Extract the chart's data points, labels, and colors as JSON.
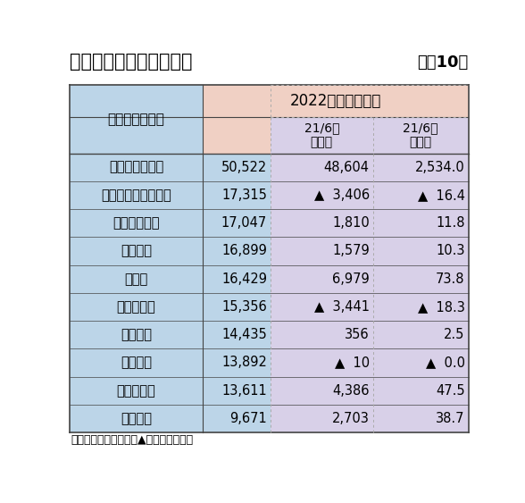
{
  "title_left": "地銀の連結四半期純利益",
  "title_right": "上位10社",
  "period_header": "2022年４〜６月期",
  "bank_header": "銀　行　名　等",
  "col2_header": "21/6比\n増減額",
  "col3_header": "21/6比\n増減率",
  "rows": [
    {
      "name": "プロクレアＨＤ",
      "value": "50,522",
      "change_amt": "48,604",
      "change_rate": "2,534.0",
      "neg_amt": false,
      "neg_rate": false
    },
    {
      "name": "コンコルディアＦＧ",
      "value": "17,315",
      "change_amt": "▲  3,406",
      "change_rate": "▲  16.4",
      "neg_amt": true,
      "neg_rate": true
    },
    {
      "name": "ふくおかＦＧ",
      "value": "17,047",
      "change_amt": "1,810",
      "change_rate": "11.8",
      "neg_amt": false,
      "neg_rate": false
    },
    {
      "name": "千　　葉",
      "value": "16,899",
      "change_amt": "1,579",
      "change_rate": "10.3",
      "neg_amt": false,
      "neg_rate": false
    },
    {
      "name": "伊　予",
      "value": "16,429",
      "change_amt": "6,979",
      "change_rate": "73.8",
      "neg_amt": false,
      "neg_rate": false
    },
    {
      "name": "めぶきＦＧ",
      "value": "15,356",
      "change_amt": "▲  3,441",
      "change_rate": "▲  18.3",
      "neg_amt": true,
      "neg_rate": true
    },
    {
      "name": "静　　岡",
      "value": "14,435",
      "change_amt": "356",
      "change_rate": "2.5",
      "neg_amt": false,
      "neg_rate": false
    },
    {
      "name": "京　　都",
      "value": "13,892",
      "change_amt": "▲  10",
      "change_rate": "▲  0.0",
      "neg_amt": true,
      "neg_rate": true
    },
    {
      "name": "北国ＦＨＤ",
      "value": "13,611",
      "change_amt": "4,386",
      "change_rate": "47.5",
      "neg_amt": false,
      "neg_rate": false
    },
    {
      "name": "九州ＦＧ",
      "value": "9,671",
      "change_amt": "2,703",
      "change_rate": "38.7",
      "neg_amt": false,
      "neg_rate": false
    }
  ],
  "note": "（注）単位：百万円。▲印は減少、低下",
  "bg_blue": "#bcd5e8",
  "bg_pink": "#f0d0c4",
  "bg_lavender": "#d8d0e8",
  "bg_white": "#ffffff",
  "border_dark": "#444444",
  "border_dot": "#aaaaaa",
  "text_color": "#000000"
}
